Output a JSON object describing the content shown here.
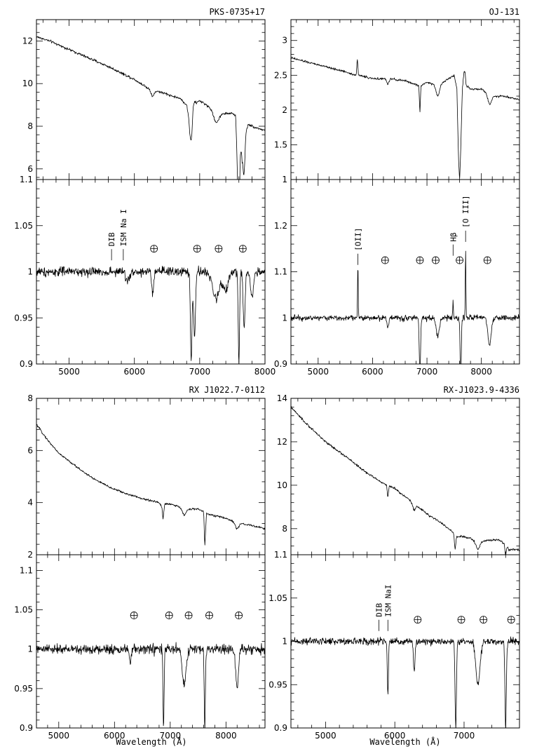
{
  "chart_data": [
    {
      "type": "line",
      "title": "PKS-0735+17",
      "xlim": [
        4500,
        8000
      ],
      "x_ticks": [
        5000,
        6000,
        7000,
        8000
      ],
      "x_tick_labels": [
        "5000",
        "6000",
        "7000",
        "8000"
      ],
      "upper": {
        "ylim": [
          5.5,
          13
        ],
        "y_ticks": [
          6,
          8,
          10,
          12
        ],
        "y_tick_labels": [
          "6",
          "8",
          "10",
          "12"
        ],
        "series": [
          {
            "x": [
              4500,
              4700,
              5000,
              5300,
              5600,
              5800,
              6000,
              6200,
              6500,
              6700,
              6800,
              6850,
              6880,
              6900,
              6950,
              7000,
              7200,
              7300,
              7500,
              7550,
              7580,
              7600,
              7620,
              7650,
              7700,
              7750,
              7800,
              7900,
              8000
            ],
            "y": [
              12.2,
              12.0,
              11.6,
              11.2,
              10.8,
              10.5,
              10.2,
              9.8,
              9.5,
              9.3,
              9.0,
              8.2,
              8.5,
              9.2,
              9.1,
              9.2,
              8.8,
              8.6,
              8.6,
              8.5,
              6.2,
              5.6,
              7.5,
              6.5,
              7.8,
              8.1,
              8.0,
              7.9,
              7.8
            ]
          }
        ],
        "dips": [
          {
            "x": 6280,
            "depth": 0.3,
            "width": 25
          },
          {
            "x": 6870,
            "depth": 1.0,
            "width": 20
          },
          {
            "x": 7250,
            "depth": 0.5,
            "width": 40
          },
          {
            "x": 7600,
            "depth": 2.5,
            "width": 15
          },
          {
            "x": 7680,
            "depth": 1.5,
            "width": 15
          }
        ],
        "noise": 0.06
      },
      "lower": {
        "ylim": [
          0.9,
          1.1
        ],
        "y_ticks": [
          0.9,
          0.95,
          1.0,
          1.05,
          1.1
        ],
        "y_tick_labels": [
          "0.9",
          "0.95",
          "1",
          "1.05",
          "1.1"
        ],
        "baseline": 1.0,
        "noise": 0.005,
        "dips": [
          {
            "x": 5900,
            "depth": 0.01,
            "width": 30
          },
          {
            "x": 6280,
            "depth": 0.025,
            "width": 15
          },
          {
            "x": 6870,
            "depth": 0.1,
            "width": 12
          },
          {
            "x": 6920,
            "depth": 0.07,
            "width": 15
          },
          {
            "x": 7250,
            "depth": 0.03,
            "width": 50
          },
          {
            "x": 7400,
            "depth": 0.02,
            "width": 40
          },
          {
            "x": 7600,
            "depth": 0.1,
            "width": 10
          },
          {
            "x": 7680,
            "depth": 0.06,
            "width": 15
          },
          {
            "x": 7800,
            "depth": 0.03,
            "width": 20
          }
        ],
        "peaks": [],
        "annotations": [
          {
            "x": 5650,
            "y": 1.02,
            "label": "DIB"
          },
          {
            "x": 5830,
            "y": 1.02,
            "label": "ISM Na I"
          }
        ],
        "telluric_markers": [
          6300,
          6960,
          7290,
          7660
        ],
        "marker_y": 1.025
      },
      "xlabel": ""
    },
    {
      "type": "line",
      "title": "OJ-131",
      "xlim": [
        4500,
        8700
      ],
      "x_ticks": [
        5000,
        6000,
        7000,
        8000
      ],
      "x_tick_labels": [
        "5000",
        "6000",
        "7000",
        "8000"
      ],
      "upper": {
        "ylim": [
          1,
          3.3
        ],
        "y_ticks": [
          1,
          1.5,
          2,
          2.5,
          3
        ],
        "y_tick_labels": [
          "1",
          "1.5",
          "2",
          "2.5",
          "3"
        ],
        "series": [
          {
            "x": [
              4500,
              5000,
              5500,
              5700,
              5720,
              5740,
              5760,
              6000,
              6300,
              6600,
              6850,
              6870,
              6890,
              7000,
              7200,
              7400,
              7500,
              7550,
              7580,
              7600,
              7620,
              7650,
              7680,
              7700,
              7720,
              7800,
              8000,
              8200,
              8400,
              8700
            ],
            "y": [
              2.75,
              2.65,
              2.55,
              2.5,
              2.75,
              2.5,
              2.5,
              2.45,
              2.45,
              2.42,
              2.35,
              1.95,
              2.35,
              2.4,
              2.35,
              2.45,
              2.5,
              2.3,
              1.3,
              1.0,
              1.4,
              2.3,
              2.55,
              2.55,
              2.35,
              2.3,
              2.3,
              2.2,
              2.2,
              2.15
            ]
          }
        ],
        "dips": [
          {
            "x": 6280,
            "depth": 0.08,
            "width": 20
          },
          {
            "x": 7200,
            "depth": 0.15,
            "width": 30
          },
          {
            "x": 8150,
            "depth": 0.15,
            "width": 30
          }
        ],
        "noise": 0.015
      },
      "lower": {
        "ylim": [
          0.9,
          1.3
        ],
        "y_ticks": [
          0.9,
          1.0,
          1.1,
          1.2
        ],
        "y_tick_labels": [
          "0.9",
          "1",
          "1.1",
          "1.2"
        ],
        "baseline": 1.0,
        "noise": 0.006,
        "dips": [
          {
            "x": 6280,
            "depth": 0.02,
            "width": 15
          },
          {
            "x": 6870,
            "depth": 0.12,
            "width": 12
          },
          {
            "x": 7200,
            "depth": 0.04,
            "width": 30
          },
          {
            "x": 7620,
            "depth": 0.15,
            "width": 10
          },
          {
            "x": 8150,
            "depth": 0.06,
            "width": 30
          }
        ],
        "peaks": [
          {
            "x": 5730,
            "height": 0.12,
            "width": 6
          },
          {
            "x": 7480,
            "height": 0.04,
            "width": 6
          },
          {
            "x": 7710,
            "height": 0.15,
            "width": 6
          }
        ],
        "annotations": [
          {
            "x": 5730,
            "y": 1.13,
            "label": "[OII]"
          },
          {
            "x": 7480,
            "y": 1.15,
            "label": "Hβ"
          },
          {
            "x": 7710,
            "y": 1.18,
            "label": "[O III]"
          }
        ],
        "telluric_markers": [
          6230,
          6870,
          7160,
          7600,
          8110
        ],
        "marker_y": 1.125
      },
      "xlabel": ""
    },
    {
      "type": "line",
      "title": "RX J1022.7-0112",
      "xlim": [
        4600,
        8700
      ],
      "x_ticks": [
        5000,
        6000,
        7000,
        8000
      ],
      "x_tick_labels": [
        "5000",
        "6000",
        "7000",
        "8000"
      ],
      "upper": {
        "ylim": [
          2,
          8
        ],
        "y_ticks": [
          2,
          4,
          6,
          8
        ],
        "y_tick_labels": [
          "2",
          "4",
          "6",
          "8"
        ],
        "series": [
          {
            "x": [
              4600,
              4800,
              5000,
              5300,
              5600,
              5900,
              6200,
              6500,
              6800,
              6850,
              6870,
              6900,
              7000,
              7200,
              7300,
              7500,
              7600,
              7620,
              7650,
              7700,
              7800,
              8000,
              8200,
              8400,
              8700
            ],
            "y": [
              7.0,
              6.4,
              5.9,
              5.4,
              4.95,
              4.6,
              4.35,
              4.15,
              4.0,
              3.85,
              3.35,
              3.95,
              3.95,
              3.8,
              3.75,
              3.75,
              3.65,
              2.3,
              3.6,
              3.55,
              3.5,
              3.4,
              3.2,
              3.15,
              3.0
            ]
          }
        ],
        "dips": [
          {
            "x": 7250,
            "depth": 0.25,
            "width": 30
          },
          {
            "x": 8200,
            "depth": 0.2,
            "width": 30
          }
        ],
        "noise": 0.04
      },
      "lower": {
        "ylim": [
          0.9,
          1.12
        ],
        "y_ticks": [
          0.9,
          0.95,
          1.0,
          1.05,
          1.1
        ],
        "y_tick_labels": [
          "0.9",
          "0.95",
          "1",
          "1.05",
          "1.1"
        ],
        "baseline": 1.0,
        "noise": 0.006,
        "dips": [
          {
            "x": 6280,
            "depth": 0.02,
            "width": 15
          },
          {
            "x": 6880,
            "depth": 0.1,
            "width": 10
          },
          {
            "x": 7250,
            "depth": 0.045,
            "width": 35
          },
          {
            "x": 7620,
            "depth": 0.1,
            "width": 10
          },
          {
            "x": 8200,
            "depth": 0.05,
            "width": 25
          }
        ],
        "peaks": [],
        "annotations": [],
        "telluric_markers": [
          6350,
          6980,
          7330,
          7700,
          8230
        ],
        "marker_y": 1.043
      },
      "xlabel": "Wavelength (Å)"
    },
    {
      "type": "line",
      "title": "RX-J1023.9-4336",
      "xlim": [
        4500,
        7800
      ],
      "x_ticks": [
        5000,
        6000,
        7000
      ],
      "x_tick_labels": [
        "5000",
        "6000",
        "7000"
      ],
      "upper": {
        "ylim": [
          6.8,
          14
        ],
        "y_ticks": [
          8,
          10,
          12,
          14
        ],
        "y_tick_labels": [
          "8",
          "10",
          "12",
          "14"
        ],
        "series": [
          {
            "x": [
              4500,
              4700,
              5000,
              5300,
              5600,
              5880,
              5900,
              5920,
              6000,
              6300,
              6500,
              6700,
              6850,
              6870,
              6890,
              6950,
              7100,
              7200,
              7300,
              7500,
              7580,
              7600,
              7620,
              7650,
              7700,
              7800
            ],
            "y": [
              13.6,
              12.9,
              12.0,
              11.3,
              10.55,
              10.0,
              9.45,
              9.95,
              9.85,
              9.1,
              8.6,
              8.2,
              7.8,
              7.0,
              7.6,
              7.65,
              7.55,
              7.3,
              7.45,
              7.5,
              7.3,
              6.7,
              7.2,
              7.0,
              7.05,
              7.0
            ]
          }
        ],
        "dips": [
          {
            "x": 6280,
            "depth": 0.3,
            "width": 20
          },
          {
            "x": 7200,
            "depth": 0.25,
            "width": 25
          }
        ],
        "noise": 0.05
      },
      "lower": {
        "ylim": [
          0.9,
          1.1
        ],
        "y_ticks": [
          0.9,
          0.95,
          1.0,
          1.05,
          1.1
        ],
        "y_tick_labels": [
          "0.9",
          "0.95",
          "1",
          "1.05",
          "1.1"
        ],
        "baseline": 1.0,
        "noise": 0.004,
        "dips": [
          {
            "x": 5900,
            "depth": 0.06,
            "width": 8
          },
          {
            "x": 6280,
            "depth": 0.035,
            "width": 12
          },
          {
            "x": 6880,
            "depth": 0.1,
            "width": 10
          },
          {
            "x": 7200,
            "depth": 0.05,
            "width": 30
          },
          {
            "x": 7600,
            "depth": 0.1,
            "width": 10
          }
        ],
        "peaks": [],
        "annotations": [
          {
            "x": 5770,
            "y": 1.02,
            "label": "DIB"
          },
          {
            "x": 5900,
            "y": 1.02,
            "label": "ISM NaI"
          }
        ],
        "telluric_markers": [
          6330,
          6960,
          7280,
          7680
        ],
        "marker_y": 1.025
      },
      "xlabel": "Wavelength (Å)"
    }
  ]
}
